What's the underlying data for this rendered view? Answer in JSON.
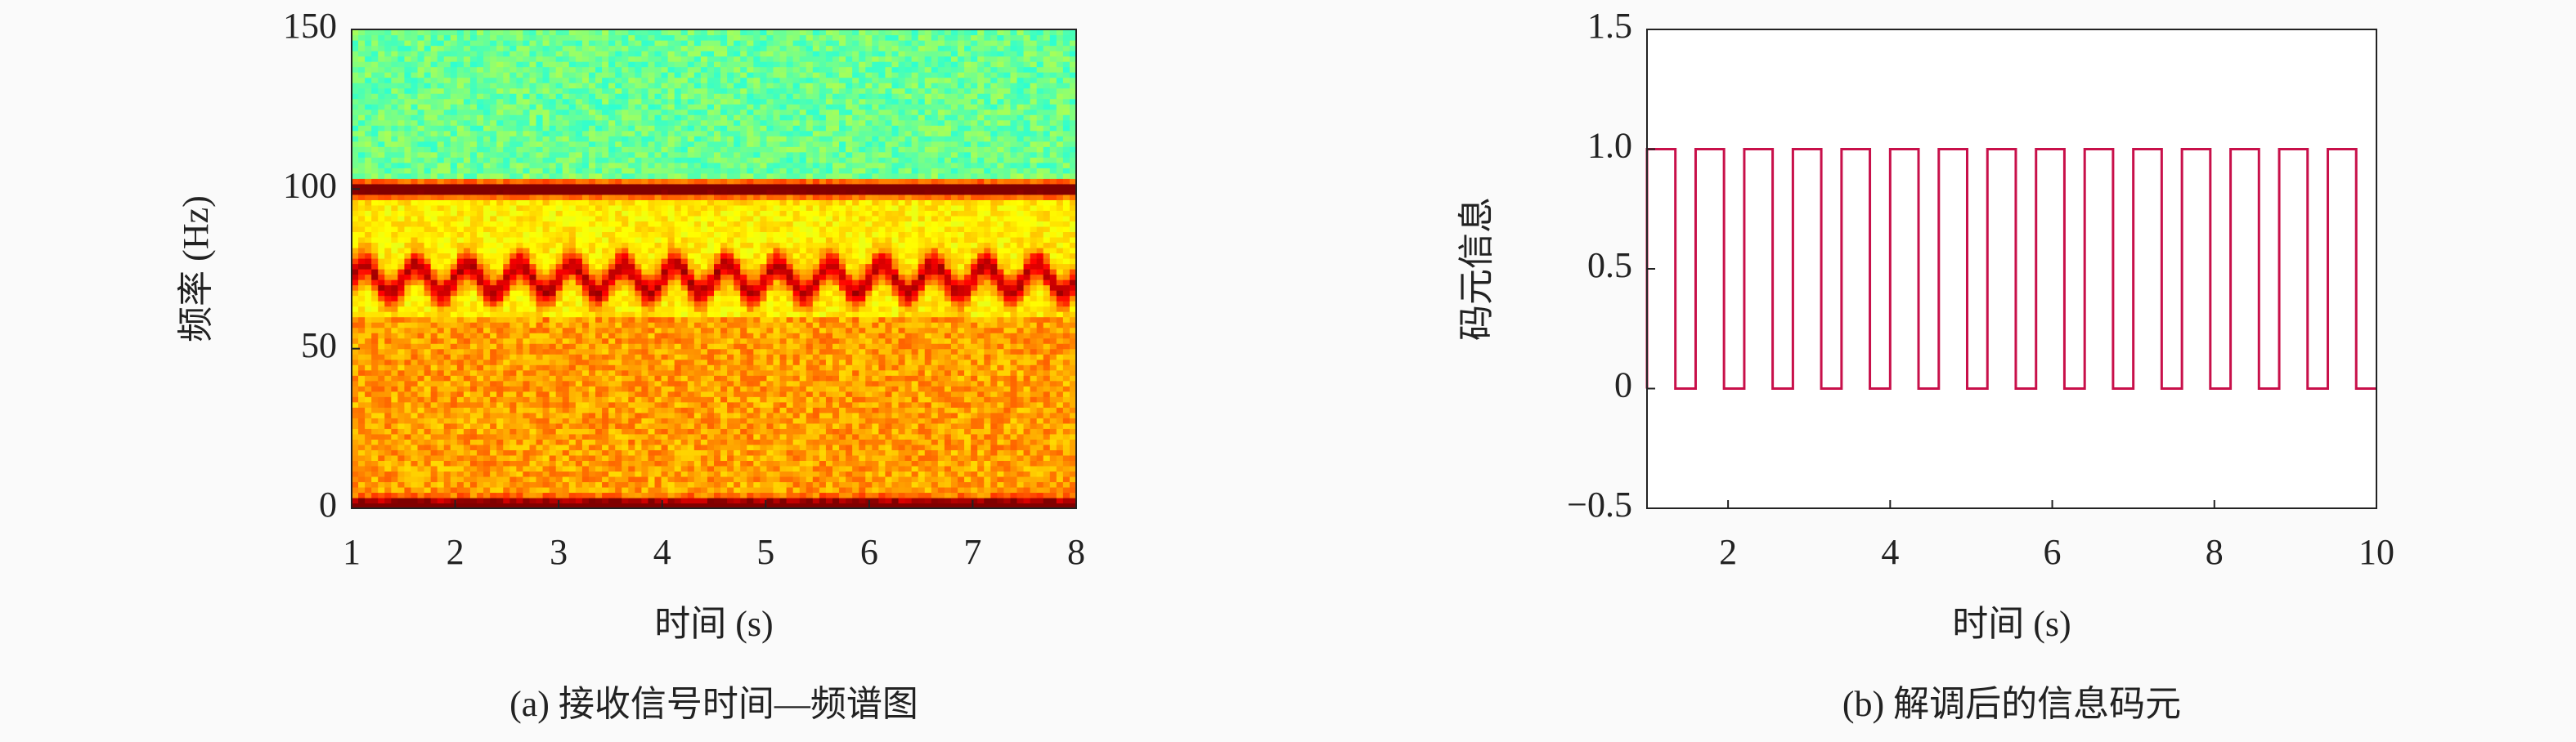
{
  "chart_data": [
    {
      "type": "spectrogram",
      "xlabel": "时间 (s)",
      "ylabel": "频率 (Hz)",
      "caption": "(a) 接收信号时间—频谱图",
      "xlim": [
        1,
        8
      ],
      "xticks": [
        1,
        2,
        3,
        4,
        5,
        6,
        7,
        8
      ],
      "ylim": [
        0,
        150
      ],
      "yticks": [
        0,
        50,
        100,
        150
      ]
    },
    {
      "type": "line",
      "xlabel": "时间 (s)",
      "ylabel": "码元信息",
      "caption": "(b) 解调后的信息码元",
      "xlim": [
        1,
        10
      ],
      "xticks": [
        2,
        4,
        6,
        8,
        10
      ],
      "ylim": [
        -0.5,
        1.5
      ],
      "yticks": [
        {
          "value": -0.5,
          "label": "−0.5"
        },
        0,
        0.5,
        {
          "value": 1,
          "label": "1.0"
        },
        1.5
      ],
      "series": [
        {
          "color": "#c8104a",
          "x": [
            1,
            1,
            1.35,
            1.35,
            1.6,
            1.6,
            1.95,
            1.95,
            2.2,
            2.2,
            2.55,
            2.55,
            2.8,
            2.8,
            3.15,
            3.15,
            3.4,
            3.4,
            3.75,
            3.75,
            4,
            4,
            4.35,
            4.35,
            4.6,
            4.6,
            4.95,
            4.95,
            5.2,
            5.2,
            5.55,
            5.55,
            5.8,
            5.8,
            6.15,
            6.15,
            6.4,
            6.4,
            6.75,
            6.75,
            7,
            7,
            7.35,
            7.35,
            7.6,
            7.6,
            7.95,
            7.95,
            8.2,
            8.2,
            8.55,
            8.55,
            8.8,
            8.8,
            9.15,
            9.15,
            9.4,
            9.4,
            9.75,
            9.75,
            10
          ],
          "values": [
            0,
            1,
            1,
            0,
            0,
            1,
            1,
            0,
            0,
            1,
            1,
            0,
            0,
            1,
            1,
            0,
            0,
            1,
            1,
            0,
            0,
            1,
            1,
            0,
            0,
            1,
            1,
            0,
            0,
            1,
            1,
            0,
            0,
            1,
            1,
            0,
            0,
            1,
            1,
            0,
            0,
            1,
            1,
            0,
            0,
            1,
            1,
            0,
            0,
            1,
            1,
            0,
            0,
            1,
            1,
            0,
            0,
            1,
            1,
            0,
            0
          ]
        }
      ]
    }
  ]
}
